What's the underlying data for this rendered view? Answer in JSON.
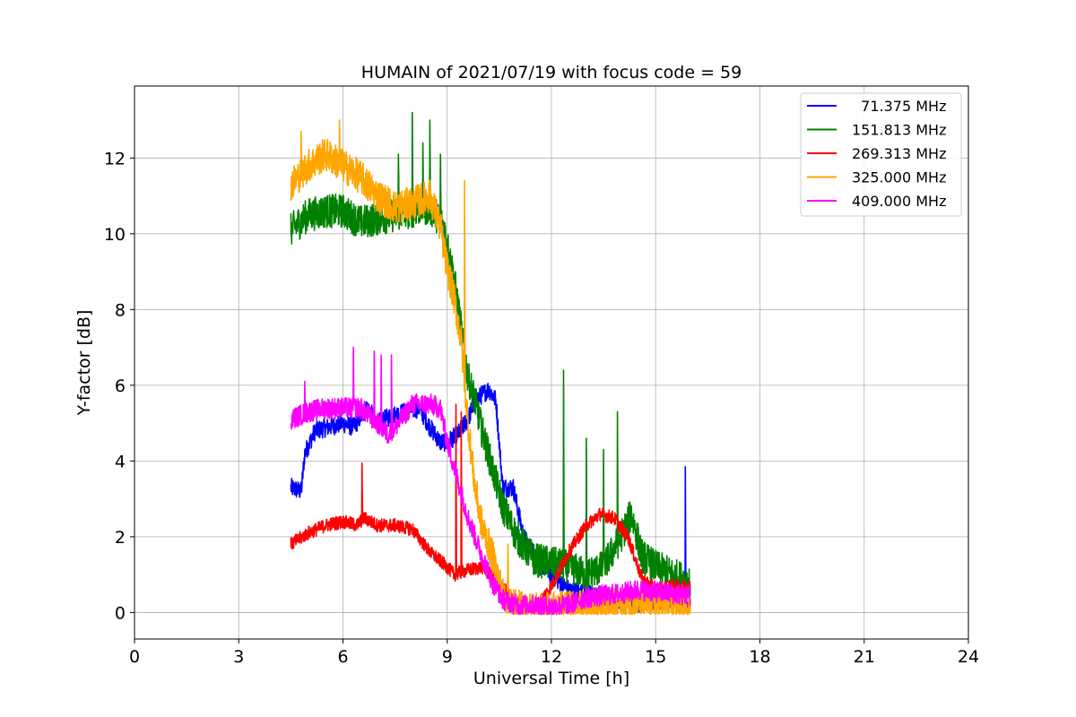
{
  "chart_data": {
    "type": "line",
    "title": "HUMAIN of 2021/07/19 with focus code = 59",
    "xlabel": "Universal Time [h]",
    "ylabel": "Y-factor [dB]",
    "xlim": [
      0,
      24
    ],
    "ylim": [
      -0.7,
      13.9
    ],
    "xticks": [
      "0",
      "3",
      "6",
      "9",
      "12",
      "15",
      "18",
      "21",
      "24"
    ],
    "yticks": [
      "0",
      "2",
      "4",
      "6",
      "8",
      "10",
      "12"
    ],
    "grid": true,
    "legend_position": "top-right",
    "series": [
      {
        "name": "  71.375 MHz",
        "color": "#0000ff",
        "noise": 0.25,
        "points": [
          [
            4.5,
            3.3
          ],
          [
            4.8,
            3.2
          ],
          [
            4.9,
            4.2
          ],
          [
            5.2,
            4.8
          ],
          [
            5.6,
            4.9
          ],
          [
            6.0,
            5.0
          ],
          [
            6.3,
            4.9
          ],
          [
            6.7,
            5.4
          ],
          [
            7.0,
            5.0
          ],
          [
            7.4,
            5.2
          ],
          [
            7.8,
            5.3
          ],
          [
            8.2,
            5.4
          ],
          [
            8.5,
            4.9
          ],
          [
            8.8,
            4.5
          ],
          [
            9.0,
            4.5
          ],
          [
            9.3,
            4.7
          ],
          [
            9.6,
            5.1
          ],
          [
            9.8,
            5.6
          ],
          [
            10.2,
            5.9
          ],
          [
            10.4,
            5.6
          ],
          [
            10.6,
            3.3
          ],
          [
            10.9,
            3.3
          ],
          [
            11.2,
            2.0
          ],
          [
            11.6,
            1.4
          ],
          [
            12.0,
            1.0
          ],
          [
            12.5,
            0.6
          ],
          [
            13.0,
            0.5
          ],
          [
            13.5,
            0.4
          ],
          [
            14.0,
            0.3
          ],
          [
            14.5,
            0.25
          ],
          [
            15.0,
            0.3
          ],
          [
            15.5,
            0.3
          ],
          [
            16.0,
            0.3
          ]
        ],
        "spikes": [
          [
            15.85,
            3.85
          ]
        ]
      },
      {
        "name": "151.813 MHz",
        "color": "#008000",
        "noise": 0.45,
        "points": [
          [
            4.5,
            10.1
          ],
          [
            5.0,
            10.5
          ],
          [
            5.5,
            10.6
          ],
          [
            6.0,
            10.6
          ],
          [
            6.5,
            10.3
          ],
          [
            7.0,
            10.4
          ],
          [
            7.5,
            10.5
          ],
          [
            8.0,
            10.6
          ],
          [
            8.3,
            10.7
          ],
          [
            8.6,
            10.6
          ],
          [
            8.9,
            10.2
          ],
          [
            9.2,
            8.8
          ],
          [
            9.4,
            7.5
          ],
          [
            9.6,
            6.2
          ],
          [
            9.8,
            5.6
          ],
          [
            10.0,
            4.8
          ],
          [
            10.3,
            3.8
          ],
          [
            10.6,
            2.8
          ],
          [
            11.0,
            2.0
          ],
          [
            11.5,
            1.4
          ],
          [
            12.0,
            1.3
          ],
          [
            12.5,
            1.2
          ],
          [
            13.0,
            1.0
          ],
          [
            13.5,
            1.2
          ],
          [
            14.0,
            2.0
          ],
          [
            14.3,
            2.6
          ],
          [
            14.6,
            1.5
          ],
          [
            15.0,
            1.2
          ],
          [
            15.5,
            1.0
          ],
          [
            16.0,
            0.8
          ]
        ],
        "spikes": [
          [
            7.6,
            12.1
          ],
          [
            8.0,
            13.2
          ],
          [
            8.3,
            12.4
          ],
          [
            8.5,
            13.0
          ],
          [
            8.8,
            12.1
          ],
          [
            12.35,
            6.4
          ],
          [
            13.0,
            4.6
          ],
          [
            13.5,
            4.3
          ],
          [
            13.9,
            5.3
          ]
        ]
      },
      {
        "name": "269.313 MHz",
        "color": "#ff0000",
        "noise": 0.18,
        "points": [
          [
            4.5,
            1.8
          ],
          [
            5.0,
            2.1
          ],
          [
            5.5,
            2.3
          ],
          [
            6.0,
            2.4
          ],
          [
            6.4,
            2.3
          ],
          [
            6.6,
            2.5
          ],
          [
            7.0,
            2.3
          ],
          [
            7.5,
            2.3
          ],
          [
            8.0,
            2.2
          ],
          [
            8.5,
            1.6
          ],
          [
            9.0,
            1.2
          ],
          [
            9.2,
            1.0
          ],
          [
            9.5,
            1.1
          ],
          [
            10.0,
            1.2
          ],
          [
            10.5,
            0.8
          ],
          [
            10.9,
            0.3
          ],
          [
            11.3,
            0.1
          ],
          [
            11.6,
            0.2
          ],
          [
            12.0,
            0.7
          ],
          [
            12.5,
            1.6
          ],
          [
            13.0,
            2.3
          ],
          [
            13.4,
            2.6
          ],
          [
            13.8,
            2.5
          ],
          [
            14.2,
            2.0
          ],
          [
            14.6,
            0.9
          ],
          [
            15.0,
            0.6
          ],
          [
            15.5,
            0.7
          ],
          [
            16.0,
            0.7
          ]
        ],
        "spikes": [
          [
            6.55,
            3.95
          ],
          [
            9.25,
            5.5
          ],
          [
            9.4,
            5.3
          ]
        ]
      },
      {
        "name": "325.000 MHz",
        "color": "#ffa500",
        "noise": 0.45,
        "points": [
          [
            4.5,
            11.3
          ],
          [
            5.0,
            11.8
          ],
          [
            5.5,
            12.1
          ],
          [
            6.0,
            11.8
          ],
          [
            6.5,
            11.5
          ],
          [
            7.0,
            11.0
          ],
          [
            7.5,
            10.7
          ],
          [
            8.0,
            10.8
          ],
          [
            8.5,
            11.0
          ],
          [
            8.8,
            10.2
          ],
          [
            9.0,
            9.1
          ],
          [
            9.2,
            8.3
          ],
          [
            9.4,
            7.2
          ],
          [
            9.6,
            5.0
          ],
          [
            9.8,
            3.3
          ],
          [
            10.0,
            2.3
          ],
          [
            10.3,
            1.5
          ],
          [
            10.6,
            0.5
          ],
          [
            11.0,
            0.15
          ],
          [
            11.5,
            0.1
          ],
          [
            12.0,
            0.1
          ],
          [
            13.0,
            0.15
          ],
          [
            14.0,
            0.2
          ],
          [
            15.0,
            0.2
          ],
          [
            16.0,
            0.15
          ]
        ],
        "spikes": [
          [
            4.8,
            12.7
          ],
          [
            5.9,
            13.0
          ],
          [
            9.5,
            11.4
          ],
          [
            10.75,
            1.8
          ]
        ]
      },
      {
        "name": "409.000 MHz",
        "color": "#ff00ff",
        "noise": 0.28,
        "points": [
          [
            4.5,
            5.1
          ],
          [
            5.0,
            5.3
          ],
          [
            5.5,
            5.4
          ],
          [
            6.0,
            5.4
          ],
          [
            6.5,
            5.4
          ],
          [
            7.0,
            5.0
          ],
          [
            7.3,
            4.7
          ],
          [
            7.6,
            5.0
          ],
          [
            8.0,
            5.5
          ],
          [
            8.5,
            5.5
          ],
          [
            8.8,
            5.4
          ],
          [
            9.0,
            4.5
          ],
          [
            9.3,
            3.5
          ],
          [
            9.6,
            2.5
          ],
          [
            10.0,
            1.5
          ],
          [
            10.3,
            0.8
          ],
          [
            10.6,
            0.35
          ],
          [
            11.0,
            0.2
          ],
          [
            11.5,
            0.2
          ],
          [
            12.0,
            0.15
          ],
          [
            12.5,
            0.2
          ],
          [
            13.0,
            0.4
          ],
          [
            13.5,
            0.45
          ],
          [
            14.0,
            0.5
          ],
          [
            14.5,
            0.6
          ],
          [
            15.0,
            0.55
          ],
          [
            15.5,
            0.5
          ],
          [
            16.0,
            0.45
          ]
        ],
        "spikes": [
          [
            4.9,
            6.1
          ],
          [
            6.3,
            7.0
          ],
          [
            6.9,
            6.9
          ],
          [
            7.1,
            6.8
          ],
          [
            7.4,
            6.8
          ]
        ]
      }
    ]
  }
}
